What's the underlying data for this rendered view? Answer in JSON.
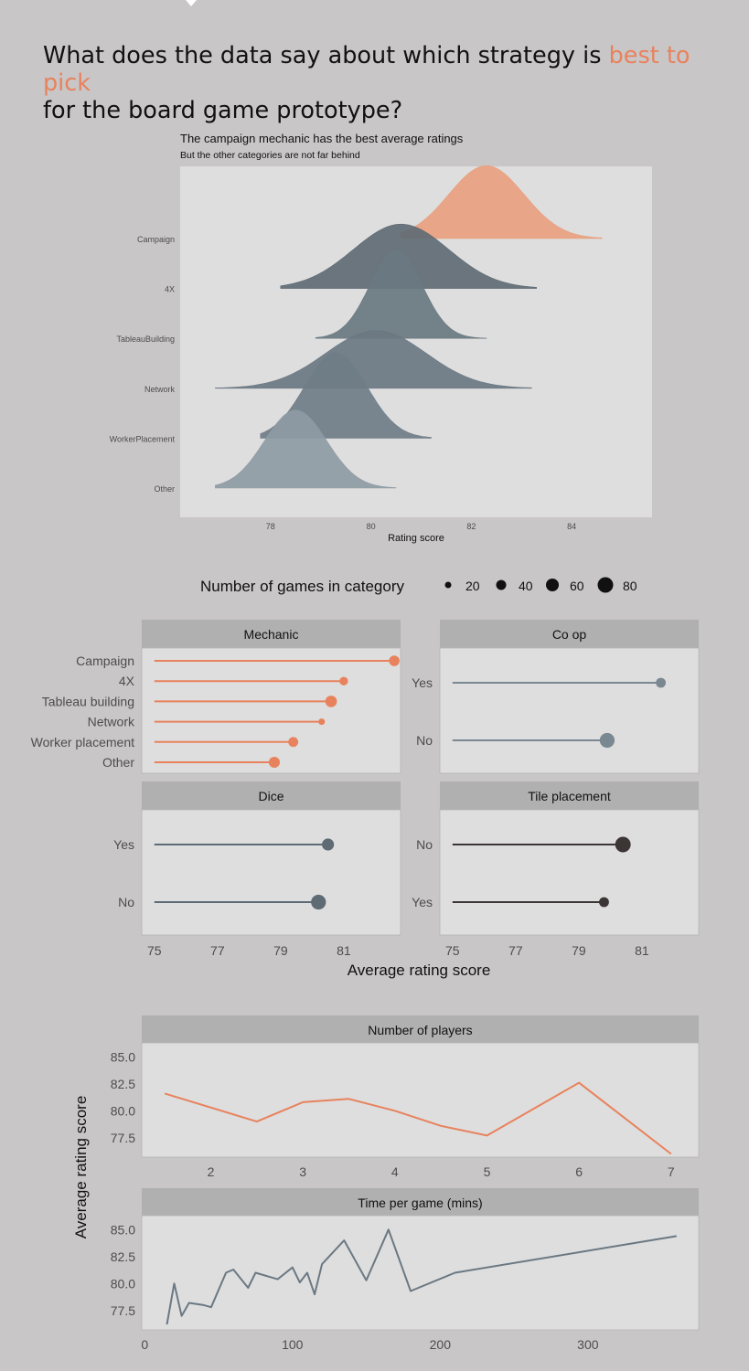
{
  "headline": {
    "part1": "What does the data say about which strategy is ",
    "highlight": "best to pick",
    "part2": "for the board game prototype?"
  },
  "colors": {
    "background": "#c8c6c7",
    "panel": "#dedede",
    "strip": "#b1b0b0",
    "accent": "#e8825d",
    "slate": "#5f6b74",
    "slate_light": "#7a8892",
    "dark": "#3b3536",
    "axis_text": "#4d4d4d"
  },
  "chart_data": [
    {
      "type": "area",
      "subtype": "ridgeline",
      "title": "The campaign mechanic has the best average ratings",
      "subtitle": "But the other categories are not far behind",
      "xlabel": "Rating score",
      "xticks": [
        78,
        80,
        82,
        84
      ],
      "xlim": [
        76.2,
        85.6
      ],
      "series": [
        {
          "name": "Campaign",
          "mean": 82.3,
          "sd": 0.75,
          "min": 80.6,
          "max": 84.6,
          "peak": 1.45,
          "color": "#e8a07f"
        },
        {
          "name": "4X",
          "mean": 80.6,
          "sd": 0.95,
          "min": 78.2,
          "max": 83.3,
          "peak": 1.28,
          "color": "#5f6b74"
        },
        {
          "name": "TableauBuilding",
          "mean": 80.5,
          "sd": 0.52,
          "min": 78.9,
          "max": 82.3,
          "peak": 1.75,
          "color": "#697881"
        },
        {
          "name": "Network",
          "mean": 80.1,
          "sd": 1.0,
          "min": 76.9,
          "max": 83.2,
          "peak": 1.15,
          "color": "#6b7882"
        },
        {
          "name": "WorkerPlacement",
          "mean": 79.3,
          "sd": 0.62,
          "min": 77.8,
          "max": 81.2,
          "peak": 1.7,
          "color": "#6f7d87"
        },
        {
          "name": "Other",
          "mean": 78.5,
          "sd": 0.62,
          "min": 76.9,
          "max": 80.5,
          "peak": 1.55,
          "color": "#8e9ba4"
        }
      ]
    },
    {
      "type": "scatter",
      "subtype": "lollipop",
      "panel": "Mechanic",
      "baseline": 75,
      "xlim": [
        74.6,
        82.8
      ],
      "xticks": [
        75,
        77,
        79,
        81
      ],
      "xlabel": "Average rating score",
      "categories": [
        "Campaign",
        "4X",
        "Tableau building",
        "Network",
        "Worker placement",
        "Other"
      ],
      "values": [
        82.6,
        81.0,
        80.6,
        80.3,
        79.4,
        78.8
      ],
      "counts": [
        30,
        15,
        40,
        5,
        25,
        35
      ],
      "color": "#e8825d"
    },
    {
      "type": "scatter",
      "subtype": "lollipop",
      "panel": "Co op",
      "baseline": 75,
      "xlim": [
        74.6,
        82.8
      ],
      "xticks": [
        75,
        77,
        79,
        81
      ],
      "categories": [
        "Yes",
        "No"
      ],
      "values": [
        81.6,
        79.9
      ],
      "counts": [
        25,
        80
      ],
      "color": "#7a8892"
    },
    {
      "type": "scatter",
      "subtype": "lollipop",
      "panel": "Dice",
      "baseline": 75,
      "xlim": [
        74.6,
        82.8
      ],
      "xticks": [
        75,
        77,
        79,
        81
      ],
      "categories": [
        "Yes",
        "No"
      ],
      "values": [
        80.5,
        80.2
      ],
      "counts": [
        45,
        80
      ],
      "color": "#5f6b74"
    },
    {
      "type": "scatter",
      "subtype": "lollipop",
      "panel": "Tile placement",
      "baseline": 75,
      "xlim": [
        74.6,
        82.8
      ],
      "xticks": [
        75,
        77,
        79,
        81
      ],
      "categories": [
        "No",
        "Yes"
      ],
      "values": [
        80.4,
        79.8
      ],
      "counts": [
        90,
        25
      ],
      "color": "#3b3536"
    },
    {
      "type": "line",
      "panel": "Number of players",
      "x": [
        1.5,
        2.5,
        3,
        3.5,
        4,
        4.5,
        5,
        6,
        7
      ],
      "y": [
        81.6,
        79.0,
        80.8,
        81.1,
        80.0,
        78.6,
        77.7,
        82.6,
        76.0
      ],
      "xlim": [
        1.25,
        7.3
      ],
      "ylim": [
        75.7,
        86.3
      ],
      "xticks": [
        2,
        3,
        4,
        5,
        6,
        7
      ],
      "yticks": [
        "85.0",
        "82.5",
        "80.0",
        "77.5"
      ],
      "color": "#e8825d"
    },
    {
      "type": "line",
      "panel": "Time per game (mins)",
      "x": [
        15,
        20,
        25,
        30,
        40,
        45,
        55,
        60,
        70,
        75,
        90,
        100,
        105,
        110,
        115,
        120,
        135,
        150,
        165,
        180,
        210,
        360
      ],
      "y": [
        76.2,
        80.0,
        77.0,
        78.2,
        78.0,
        77.8,
        81.0,
        81.3,
        79.6,
        81.0,
        80.4,
        81.5,
        80.1,
        81.0,
        79.0,
        81.8,
        84.0,
        80.3,
        85.0,
        79.3,
        81.0,
        84.4
      ],
      "xlim": [
        -2,
        375
      ],
      "ylim": [
        75.7,
        86.3
      ],
      "xticks": [
        0,
        100,
        200,
        300
      ],
      "yticks": [
        "85.0",
        "82.5",
        "80.0",
        "77.5"
      ],
      "color": "#6b7882"
    }
  ],
  "size_legend": {
    "title": "Number of games in category",
    "entries": [
      "20",
      "40",
      "60",
      "80"
    ]
  },
  "shared_ylabel": "Average rating score"
}
